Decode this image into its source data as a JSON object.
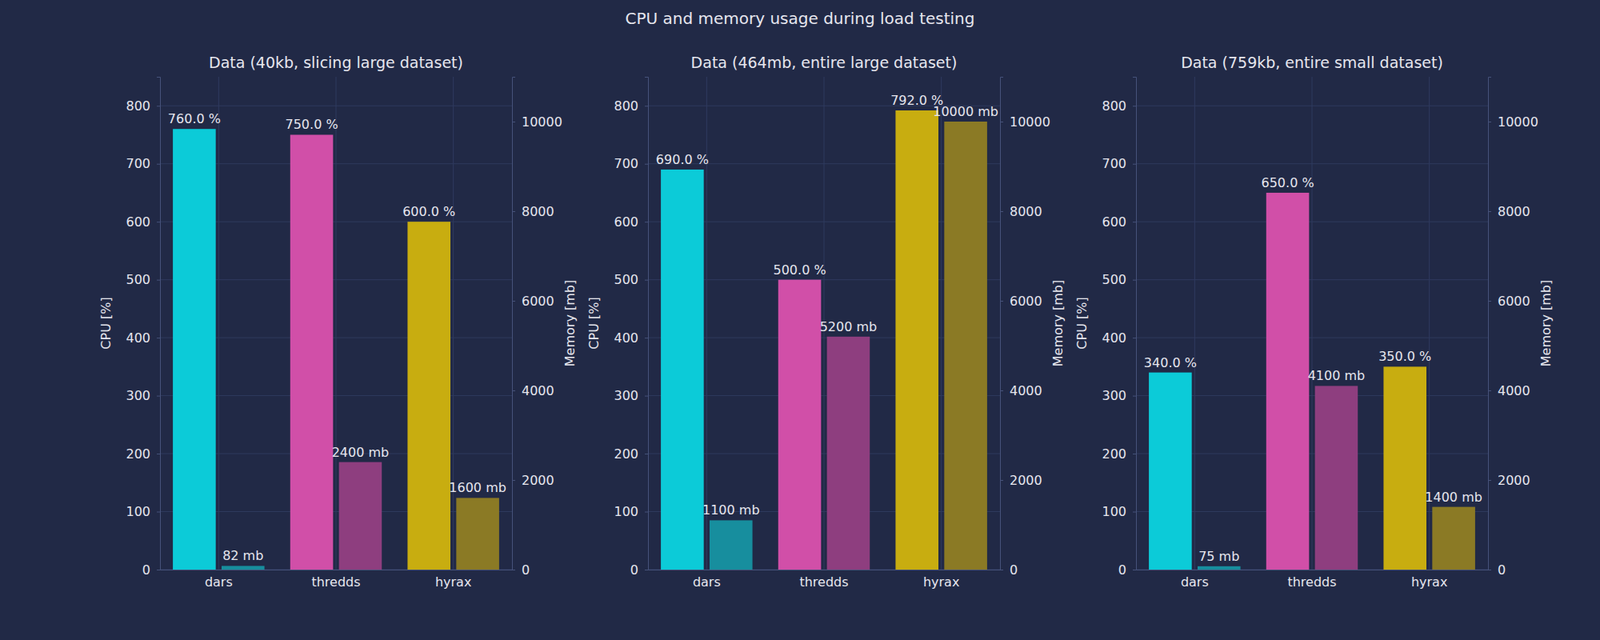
{
  "title": "CPU and memory usage during load testing",
  "chart_data": [
    {
      "type": "bar",
      "title": "Data (40kb, slicing large dataset)",
      "categories": [
        "dars",
        "thredds",
        "hyrax"
      ],
      "y_label": "CPU [%]",
      "y2_label": "Memory [mb]",
      "ylim": [
        0,
        850
      ],
      "yticks": [
        0,
        100,
        200,
        300,
        400,
        500,
        600,
        700,
        800
      ],
      "y2lim": [
        0,
        11000
      ],
      "y2ticks": [
        0,
        2000,
        4000,
        6000,
        8000,
        10000
      ],
      "grid": true,
      "data_labels": true,
      "series": [
        {
          "axis": "y",
          "colors": [
            "#0ccbd8",
            "#d14fa8",
            "#c8ad10"
          ],
          "values": [
            760,
            750,
            600
          ],
          "value_labels": [
            "760.0 %",
            "750.0 %",
            "600.0 %"
          ]
        },
        {
          "axis": "y2",
          "colors": [
            "#178e9e",
            "#8e3e7f",
            "#8b7a25"
          ],
          "values": [
            82,
            2400,
            1600
          ],
          "value_labels": [
            "82 mb",
            "2400 mb",
            "1600 mb"
          ]
        }
      ]
    },
    {
      "type": "bar",
      "title": "Data (464mb, entire large dataset)",
      "categories": [
        "dars",
        "thredds",
        "hyrax"
      ],
      "y_label": "CPU [%]",
      "y2_label": "Memory [mb]",
      "ylim": [
        0,
        850
      ],
      "yticks": [
        0,
        100,
        200,
        300,
        400,
        500,
        600,
        700,
        800
      ],
      "y2lim": [
        0,
        11000
      ],
      "y2ticks": [
        0,
        2000,
        4000,
        6000,
        8000,
        10000
      ],
      "grid": true,
      "data_labels": true,
      "series": [
        {
          "axis": "y",
          "colors": [
            "#0ccbd8",
            "#d14fa8",
            "#c8ad10"
          ],
          "values": [
            690,
            500,
            792
          ],
          "value_labels": [
            "690.0 %",
            "500.0 %",
            "792.0 %"
          ]
        },
        {
          "axis": "y2",
          "colors": [
            "#178e9e",
            "#8e3e7f",
            "#8b7a25"
          ],
          "values": [
            1100,
            5200,
            10000
          ],
          "value_labels": [
            "1100 mb",
            "5200 mb",
            "10000 mb"
          ]
        }
      ]
    },
    {
      "type": "bar",
      "title": "Data (759kb, entire small dataset)",
      "categories": [
        "dars",
        "thredds",
        "hyrax"
      ],
      "y_label": "CPU [%]",
      "y2_label": "Memory [mb]",
      "ylim": [
        0,
        850
      ],
      "yticks": [
        0,
        100,
        200,
        300,
        400,
        500,
        600,
        700,
        800
      ],
      "y2lim": [
        0,
        11000
      ],
      "y2ticks": [
        0,
        2000,
        4000,
        6000,
        8000,
        10000
      ],
      "grid": true,
      "data_labels": true,
      "series": [
        {
          "axis": "y",
          "colors": [
            "#0ccbd8",
            "#d14fa8",
            "#c8ad10"
          ],
          "values": [
            340,
            650,
            350
          ],
          "value_labels": [
            "340.0 %",
            "650.0 %",
            "350.0 %"
          ]
        },
        {
          "axis": "y2",
          "colors": [
            "#178e9e",
            "#8e3e7f",
            "#8b7a25"
          ],
          "values": [
            75,
            4100,
            1400
          ],
          "value_labels": [
            "75 mb",
            "4100 mb",
            "1400 mb"
          ]
        }
      ]
    }
  ]
}
